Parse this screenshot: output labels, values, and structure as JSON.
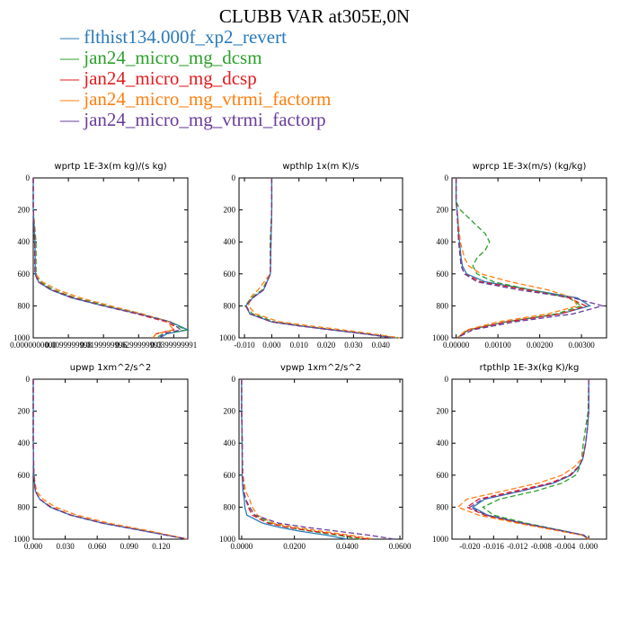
{
  "title": "CLUBB VAR at305E,0N",
  "legend": [
    {
      "label": "flthist134.000f_xp2_revert",
      "color": "#2a7ab9",
      "dash": ""
    },
    {
      "label": "jan24_micro_mg_dcsm",
      "color": "#2ca02c",
      "dash": "6,3"
    },
    {
      "label": "jan24_micro_mg_dcsp",
      "color": "#e31a1c",
      "dash": "6,3"
    },
    {
      "label": "jan24_micro_mg_vtrmi_factorm",
      "color": "#ff7f0e",
      "dash": "6,3"
    },
    {
      "label": "jan24_micro_mg_vtrmi_factorp",
      "color": "#6a3d9a",
      "dash": "6,3"
    }
  ],
  "colors": {
    "blue": "#2a7ab9",
    "green": "#2ca02c",
    "red": "#e31a1c",
    "orange": "#ff7f0e",
    "purple": "#6a3d9a"
  },
  "chart_data": [
    {
      "type": "line",
      "title": "wprtp  1E-3x(m kg)/(s kg)",
      "ylim": [
        1000,
        0
      ],
      "yticks": [
        0,
        200,
        400,
        600,
        800,
        1000
      ],
      "xlim": [
        0,
        0.044
      ],
      "xticks": [
        0,
        0.01,
        0.02,
        0.03,
        0.04
      ],
      "xticklabels": [
        "0.0000000000",
        "0.0099999998",
        "0.0199999996",
        "0.0299999993",
        "0.0399999991"
      ],
      "p": [
        0,
        200,
        400,
        600,
        650,
        700,
        750,
        800,
        850,
        900,
        925,
        950,
        975,
        1000
      ],
      "series": [
        {
          "name": "flthist134.000f_xp2_revert",
          "x": [
            0,
            0,
            0.0005,
            0.0006,
            0.0015,
            0.005,
            0.011,
            0.02,
            0.03,
            0.039,
            0.0415,
            0.044,
            0.038,
            0.036
          ]
        },
        {
          "name": "jan24_micro_mg_dcsm",
          "x": [
            0,
            0,
            0.0008,
            0.0008,
            0.002,
            0.0058,
            0.012,
            0.021,
            0.031,
            0.039,
            0.041,
            0.0435,
            0.037,
            0.035
          ]
        },
        {
          "name": "jan24_micro_mg_dcsp",
          "x": [
            0,
            0,
            0.0004,
            0.0005,
            0.0015,
            0.0052,
            0.0115,
            0.02,
            0.0295,
            0.038,
            0.04,
            0.04,
            0.035,
            0.034
          ]
        },
        {
          "name": "jan24_micro_mg_vtrmi_factorm",
          "x": [
            0,
            0,
            0.0005,
            0.0006,
            0.0025,
            0.007,
            0.0135,
            0.022,
            0.031,
            0.0385,
            0.039,
            0.04,
            0.035,
            0.034
          ]
        },
        {
          "name": "jan24_micro_mg_vtrmi_factorp",
          "x": [
            0,
            0,
            0.0004,
            0.0005,
            0.0014,
            0.005,
            0.011,
            0.02,
            0.03,
            0.039,
            0.0405,
            0.042,
            0.037,
            0.036
          ]
        }
      ]
    },
    {
      "type": "line",
      "title": "wpthlp  1x(m K)/s",
      "ylim": [
        1000,
        0
      ],
      "yticks": [
        0,
        200,
        400,
        600,
        800,
        1000
      ],
      "xlim": [
        -0.012,
        0.048
      ],
      "xticks": [
        -0.01,
        0,
        0.01,
        0.02,
        0.03,
        0.04
      ],
      "xticklabels": [
        "-0.010",
        "0.000",
        "0.010",
        "0.020",
        "0.030",
        "0.040"
      ],
      "p": [
        0,
        200,
        400,
        600,
        700,
        750,
        800,
        850,
        900,
        925,
        950,
        975,
        1000
      ],
      "series": [
        {
          "name": "flthist134.000f_xp2_revert",
          "x": [
            0,
            0,
            -0.0003,
            -0.0005,
            -0.003,
            -0.007,
            -0.0095,
            -0.008,
            0,
            0.01,
            0.022,
            0.034,
            0.045
          ]
        },
        {
          "name": "jan24_micro_mg_dcsm",
          "x": [
            0,
            0,
            -0.0006,
            -0.0005,
            -0.0035,
            -0.0075,
            -0.0098,
            -0.007,
            0.001,
            0.011,
            0.023,
            0.034,
            0.046
          ]
        },
        {
          "name": "jan24_micro_mg_dcsp",
          "x": [
            0,
            0,
            -0.0003,
            -0.0005,
            -0.003,
            -0.007,
            -0.0093,
            -0.008,
            0,
            0.01,
            0.022,
            0.034,
            0.045
          ]
        },
        {
          "name": "jan24_micro_mg_vtrmi_factorm",
          "x": [
            0,
            0,
            -0.0003,
            -0.0006,
            -0.005,
            -0.008,
            -0.0085,
            -0.006,
            0.003,
            0.014,
            0.026,
            0.037,
            0.047
          ]
        },
        {
          "name": "jan24_micro_mg_vtrmi_factorp",
          "x": [
            0,
            0,
            -0.0003,
            -0.0005,
            -0.003,
            -0.007,
            -0.0095,
            -0.008,
            0,
            0.01,
            0.022,
            0.034,
            0.045
          ]
        }
      ]
    },
    {
      "type": "line",
      "title": "wprcp  1E-3x(m/s) (kg/kg)",
      "ylim": [
        1000,
        0
      ],
      "yticks": [
        0,
        200,
        400,
        600,
        800,
        1000
      ],
      "xlim": [
        -0.0001,
        0.0036
      ],
      "xticks": [
        0,
        0.001,
        0.002,
        0.003
      ],
      "xticklabels": [
        "0.00000",
        "0.00100",
        "0.00200",
        "0.00300"
      ],
      "p": [
        0,
        150,
        200,
        250,
        300,
        350,
        400,
        450,
        500,
        550,
        600,
        650,
        700,
        750,
        800,
        850,
        900,
        950,
        1000
      ],
      "series": [
        {
          "name": "flthist134.000f_xp2_revert",
          "x": [
            0,
            0,
            2e-05,
            4e-05,
            5e-05,
            6e-05,
            8e-05,
            0.0001,
            0.00012,
            0.00015,
            0.00025,
            0.0007,
            0.0018,
            0.0029,
            0.0032,
            0.0025,
            0.0012,
            0.0003,
            2e-05
          ]
        },
        {
          "name": "jan24_micro_mg_dcsm",
          "x": [
            0,
            0,
            0.0001,
            0.0003,
            0.0005,
            0.0007,
            0.0008,
            0.0007,
            0.0005,
            0.0004,
            0.0005,
            0.0009,
            0.0018,
            0.0027,
            0.003,
            0.0024,
            0.0012,
            0.0003,
            2e-05
          ]
        },
        {
          "name": "jan24_micro_mg_dcsp",
          "x": [
            0,
            0,
            2e-05,
            3e-05,
            4e-05,
            5e-05,
            6e-05,
            8e-05,
            0.0001,
            0.00012,
            0.0002,
            0.0006,
            0.0017,
            0.0027,
            0.0031,
            0.0025,
            0.0012,
            0.0003,
            2e-05
          ]
        },
        {
          "name": "jan24_micro_mg_vtrmi_factorm",
          "x": [
            0,
            0,
            2e-05,
            4e-05,
            6e-05,
            8e-05,
            0.0001,
            0.00015,
            0.0002,
            0.0003,
            0.0006,
            0.0013,
            0.0022,
            0.0028,
            0.0029,
            0.0022,
            0.001,
            0.00025,
            2e-05
          ]
        },
        {
          "name": "jan24_micro_mg_vtrmi_factorp",
          "x": [
            0,
            0,
            2e-05,
            3e-05,
            4e-05,
            5e-05,
            6e-05,
            8e-05,
            0.0001,
            0.00012,
            0.0002,
            0.0005,
            0.0015,
            0.0028,
            0.0035,
            0.0028,
            0.0014,
            0.0004,
            2e-05
          ]
        }
      ]
    },
    {
      "type": "line",
      "title": "upwp  1xm^2/s^2",
      "ylim": [
        1000,
        0
      ],
      "yticks": [
        0,
        200,
        400,
        600,
        800,
        1000
      ],
      "xlim": [
        0,
        0.145
      ],
      "xticks": [
        0,
        0.03,
        0.06,
        0.09,
        0.12
      ],
      "xticklabels": [
        "0.000",
        "0.030",
        "0.060",
        "0.090",
        "0.120"
      ],
      "p": [
        0,
        200,
        400,
        600,
        700,
        750,
        800,
        850,
        900,
        950,
        1000
      ],
      "series": [
        {
          "name": "flthist134.000f_xp2_revert",
          "x": [
            0,
            0,
            0,
            0.0005,
            0.002,
            0.006,
            0.016,
            0.035,
            0.065,
            0.105,
            0.145
          ]
        },
        {
          "name": "jan24_micro_mg_dcsm",
          "x": [
            0,
            0,
            0,
            0.0005,
            0.002,
            0.006,
            0.016,
            0.035,
            0.065,
            0.105,
            0.145
          ]
        },
        {
          "name": "jan24_micro_mg_dcsp",
          "x": [
            0,
            0,
            0,
            0.0005,
            0.002,
            0.006,
            0.017,
            0.036,
            0.066,
            0.106,
            0.145
          ]
        },
        {
          "name": "jan24_micro_mg_vtrmi_factorm",
          "x": [
            0,
            0,
            0,
            0.0008,
            0.003,
            0.009,
            0.021,
            0.041,
            0.071,
            0.11,
            0.145
          ]
        },
        {
          "name": "jan24_micro_mg_vtrmi_factorp",
          "x": [
            0,
            0,
            0,
            0.0005,
            0.002,
            0.006,
            0.016,
            0.035,
            0.065,
            0.105,
            0.145
          ]
        }
      ]
    },
    {
      "type": "line",
      "title": "vpwp  1xm^2/s^2",
      "ylim": [
        1000,
        0
      ],
      "yticks": [
        0,
        200,
        400,
        600,
        800,
        1000
      ],
      "xlim": [
        -0.001,
        0.061
      ],
      "xticks": [
        0,
        0.02,
        0.04,
        0.06
      ],
      "xticklabels": [
        "0.0000",
        "0.0200",
        "0.0400",
        "0.0600"
      ],
      "p": [
        0,
        200,
        400,
        600,
        700,
        750,
        800,
        850,
        900,
        925,
        950,
        975,
        1000
      ],
      "series": [
        {
          "name": "flthist134.000f_xp2_revert",
          "x": [
            0,
            0,
            0.0002,
            0.0002,
            0.0005,
            0.001,
            0.0012,
            0.002,
            0.008,
            0.014,
            0.022,
            0.032,
            0.04
          ]
        },
        {
          "name": "jan24_micro_mg_dcsm",
          "x": [
            0,
            0,
            0.0003,
            0.0003,
            0.0008,
            0.0015,
            0.003,
            0.005,
            0.011,
            0.017,
            0.026,
            0.036,
            0.045
          ]
        },
        {
          "name": "jan24_micro_mg_dcsp",
          "x": [
            0,
            0,
            0.0002,
            0.0003,
            0.0008,
            0.0015,
            0.0025,
            0.004,
            0.01,
            0.017,
            0.027,
            0.038,
            0.048
          ]
        },
        {
          "name": "jan24_micro_mg_vtrmi_factorm",
          "x": [
            0,
            0,
            0.0002,
            0.0005,
            0.0015,
            0.003,
            0.004,
            0.006,
            0.012,
            0.02,
            0.03,
            0.041,
            0.05
          ]
        },
        {
          "name": "jan24_micro_mg_vtrmi_factorp",
          "x": [
            0,
            0,
            0.0002,
            0.0003,
            0.0008,
            0.0015,
            0.003,
            0.005,
            0.014,
            0.024,
            0.036,
            0.048,
            0.058
          ]
        }
      ]
    },
    {
      "type": "line",
      "title": "rtpthlp  1E-3x(kg K)/kg",
      "ylim": [
        1000,
        0
      ],
      "yticks": [
        0,
        200,
        400,
        600,
        800,
        1000
      ],
      "xlim": [
        -0.023,
        0.003
      ],
      "xticks": [
        -0.02,
        -0.016,
        -0.012,
        -0.008,
        -0.004,
        0
      ],
      "xticklabels": [
        "-0.020",
        "-0.016",
        "-0.012",
        "-0.008",
        "-0.004",
        "0.000"
      ],
      "p": [
        0,
        200,
        300,
        400,
        500,
        550,
        600,
        650,
        700,
        750,
        800,
        850,
        900,
        950,
        975,
        1000
      ],
      "series": [
        {
          "name": "flthist134.000f_xp2_revert",
          "x": [
            0,
            0,
            -0.0002,
            -0.0005,
            -0.001,
            -0.0017,
            -0.003,
            -0.006,
            -0.0115,
            -0.0175,
            -0.0195,
            -0.017,
            -0.011,
            -0.004,
            -0.0008,
            0
          ]
        },
        {
          "name": "jan24_micro_mg_dcsm",
          "x": [
            0,
            -0.0001,
            -0.0005,
            -0.0009,
            -0.0012,
            -0.0015,
            -0.0022,
            -0.0045,
            -0.009,
            -0.015,
            -0.0178,
            -0.016,
            -0.0105,
            -0.004,
            -0.001,
            0
          ]
        },
        {
          "name": "jan24_micro_mg_dcsp",
          "x": [
            0,
            0,
            -0.0002,
            -0.0005,
            -0.001,
            -0.0018,
            -0.0032,
            -0.0065,
            -0.0125,
            -0.0185,
            -0.0205,
            -0.0175,
            -0.0115,
            -0.0045,
            -0.001,
            0
          ]
        },
        {
          "name": "jan24_micro_mg_vtrmi_factorm",
          "x": [
            0,
            0,
            -0.0002,
            -0.0005,
            -0.0012,
            -0.0025,
            -0.0045,
            -0.0085,
            -0.0145,
            -0.0205,
            -0.022,
            -0.0185,
            -0.012,
            -0.0048,
            -0.0012,
            0
          ]
        },
        {
          "name": "jan24_micro_mg_vtrmi_factorp",
          "x": [
            0,
            0,
            -0.0002,
            -0.0005,
            -0.001,
            -0.0017,
            -0.003,
            -0.006,
            -0.0115,
            -0.0178,
            -0.02,
            -0.0172,
            -0.0112,
            -0.0042,
            -0.0009,
            0
          ]
        }
      ]
    }
  ]
}
